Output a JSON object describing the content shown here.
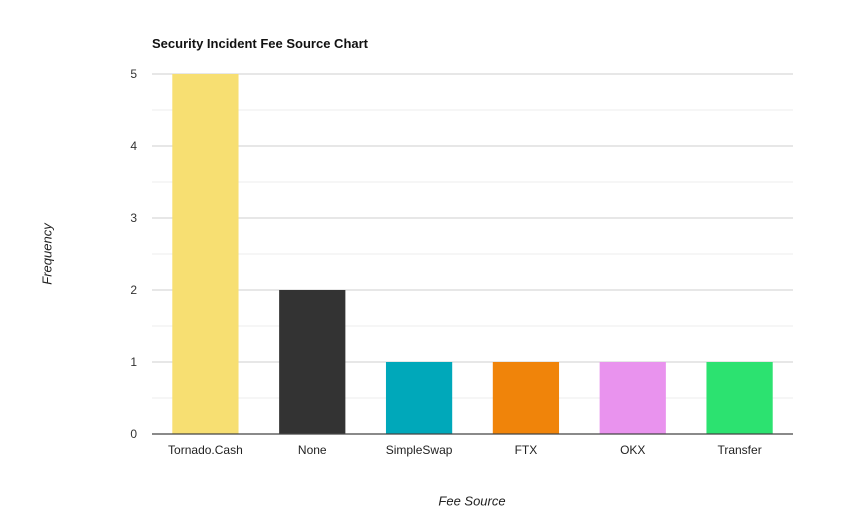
{
  "chart_data": {
    "type": "bar",
    "title": "Security Incident Fee Source Chart",
    "xlabel": "Fee Source",
    "ylabel": "Frequency",
    "categories": [
      "Tornado.Cash",
      "None",
      "SimpleSwap",
      "FTX",
      "OKX",
      "Transfer"
    ],
    "values": [
      5,
      2,
      1,
      1,
      1,
      1
    ],
    "colors": [
      "#F7DF72",
      "#333333",
      "#00A8BA",
      "#F0840A",
      "#E993EE",
      "#2CE270"
    ],
    "ylim": [
      0,
      5
    ],
    "yticks": [
      0,
      1,
      2,
      3,
      4,
      5
    ],
    "grid": true,
    "legend": "none"
  }
}
